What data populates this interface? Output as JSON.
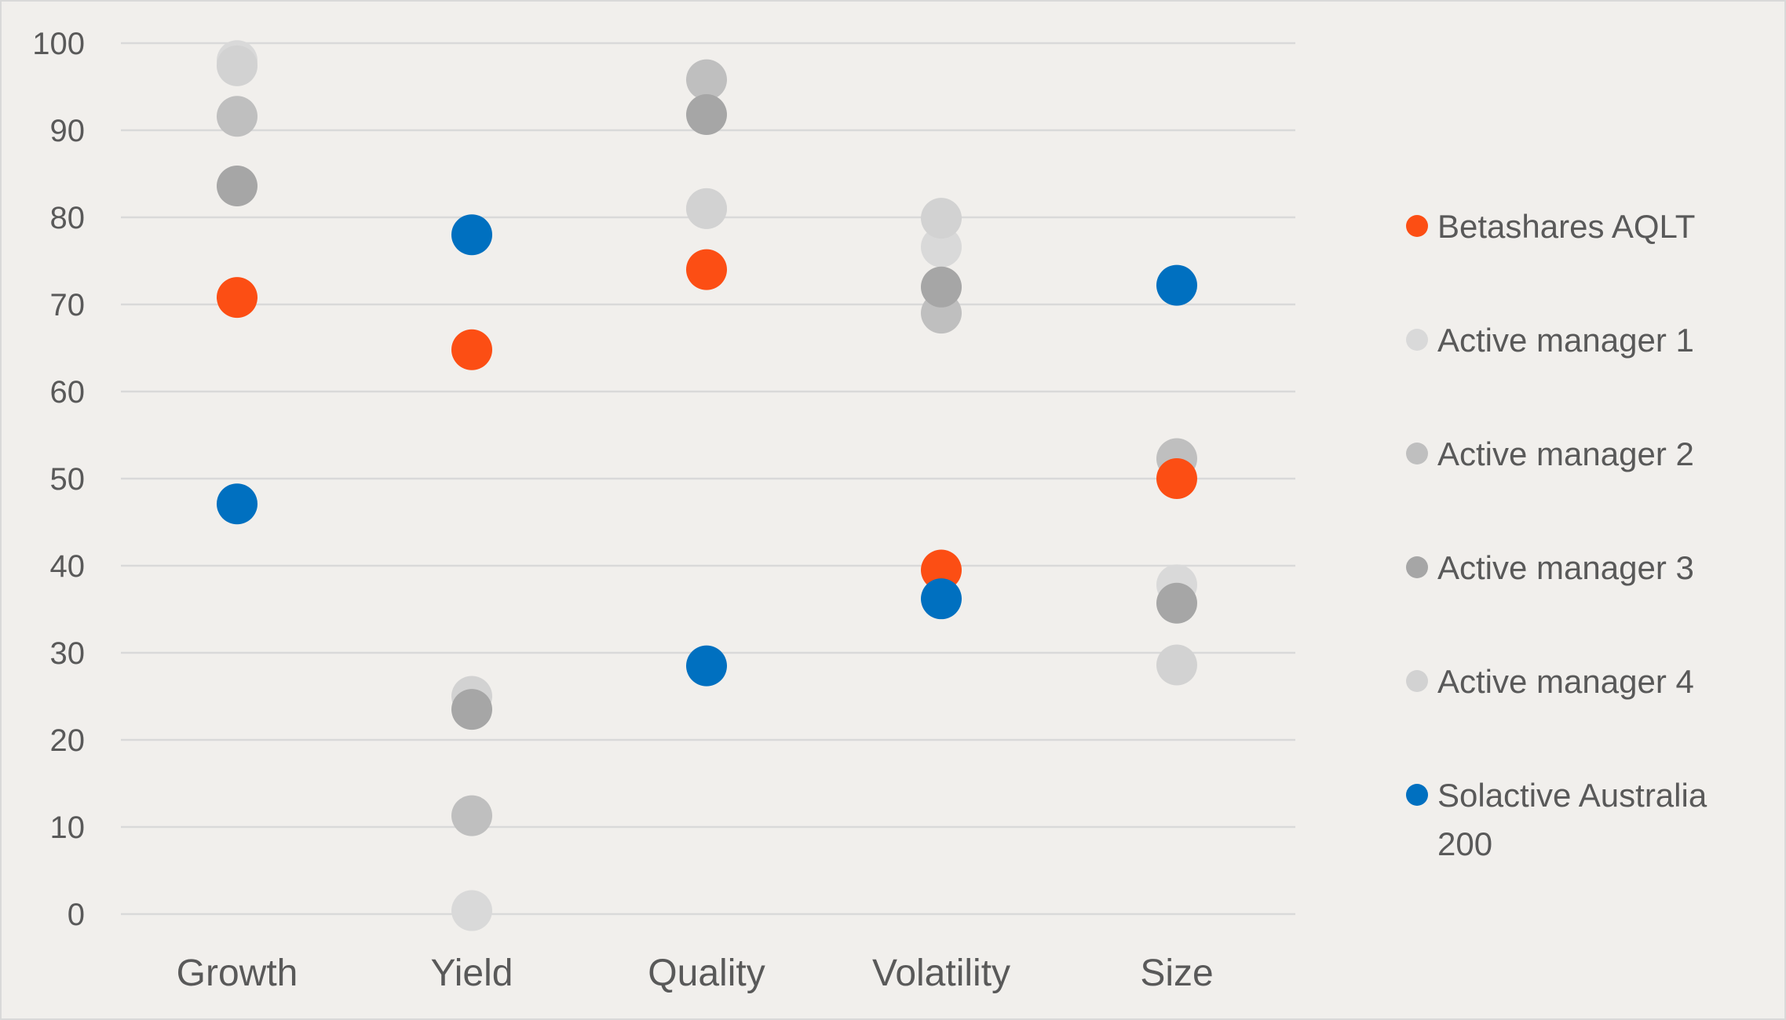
{
  "chart_data": {
    "type": "scatter",
    "title": "",
    "xlabel": "",
    "ylabel": "",
    "ylim": [
      0,
      100
    ],
    "y_ticks": [
      0,
      10,
      20,
      30,
      40,
      50,
      60,
      70,
      80,
      90,
      100
    ],
    "grid": true,
    "legend_position": "right",
    "categories": [
      "Growth",
      "Yield",
      "Quality",
      "Volatility",
      "Size"
    ],
    "series": [
      {
        "name": "Betashares AQLT",
        "color": "#fc4e14",
        "values": [
          70.8,
          64.8,
          74.0,
          39.5,
          50.0
        ]
      },
      {
        "name": "Active manager 1",
        "color": "#d9d9d9",
        "values": [
          98.0,
          0.4,
          81.0,
          76.6,
          37.8
        ]
      },
      {
        "name": "Active manager 2",
        "color": "#bfbfbf",
        "values": [
          91.6,
          11.3,
          95.8,
          69.0,
          52.3
        ]
      },
      {
        "name": "Active manager 3",
        "color": "#a6a6a6",
        "values": [
          83.6,
          23.5,
          91.8,
          72.0,
          35.7
        ]
      },
      {
        "name": "Active manager 4",
        "color": "#d2d2d2",
        "values": [
          97.4,
          25.0,
          81.0,
          79.9,
          28.6
        ]
      },
      {
        "name": "Solactive Australia 200",
        "legend_lines": [
          "Solactive Australia",
          "200"
        ],
        "color": "#0070c0",
        "values": [
          47.1,
          78.0,
          28.5,
          36.2,
          72.2
        ]
      }
    ]
  }
}
